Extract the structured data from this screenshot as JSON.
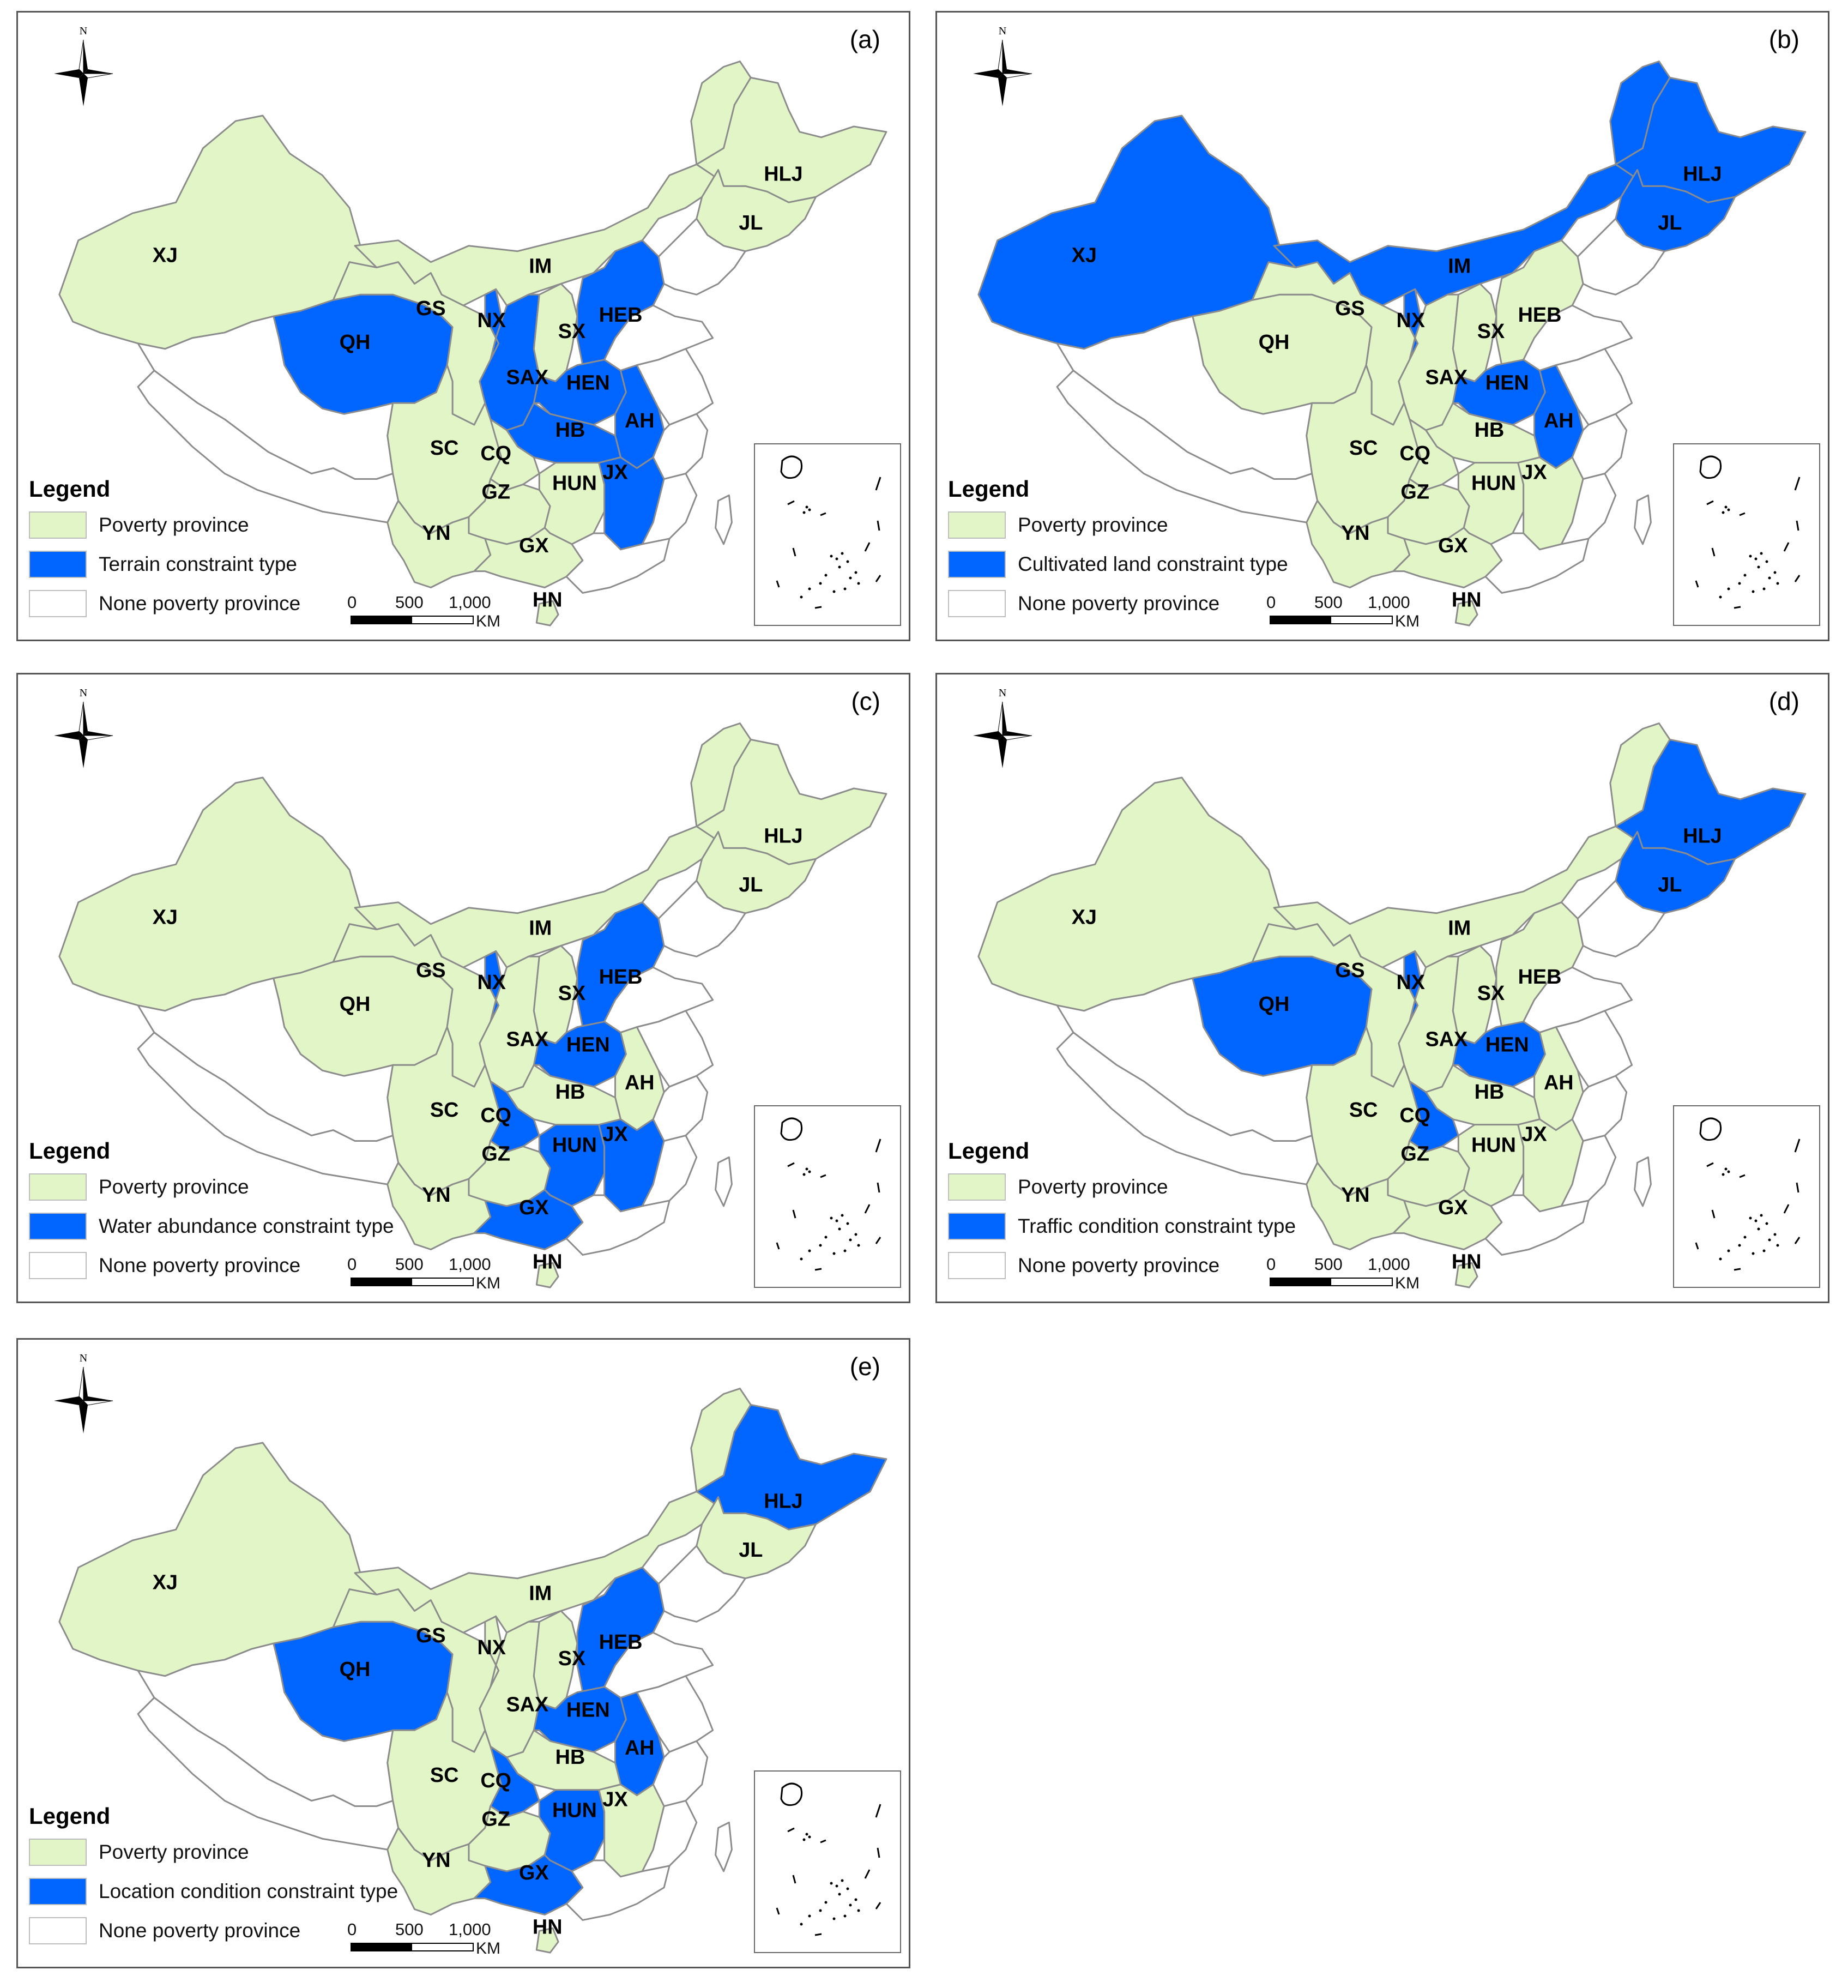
{
  "colors": {
    "poverty": "#e1f5c6",
    "constraint": "#0066ff",
    "none": "#ffffff",
    "border": "#8c8c8c"
  },
  "legend_title": "Legend",
  "legend_common": {
    "poverty_label": "Poverty province",
    "none_label": "None poverty province"
  },
  "scale": {
    "t0": "0",
    "t500": "500",
    "t1000": "1,000",
    "unit": "KM"
  },
  "north_label": "N",
  "provinces": [
    "XJ",
    "QH",
    "GS",
    "NX",
    "IM",
    "SX",
    "HEB",
    "SAX",
    "HEN",
    "AH",
    "HB",
    "SC",
    "CQ",
    "GZ",
    "HUN",
    "JX",
    "YN",
    "GX",
    "HN",
    "HLJ",
    "JL"
  ],
  "panels": [
    {
      "letter": "(a)",
      "constraint_label": "Terrain constraint type",
      "highlighted": [
        "QH",
        "NX",
        "HEB",
        "SAX",
        "HEN",
        "AH",
        "HB",
        "JX"
      ]
    },
    {
      "letter": "(b)",
      "constraint_label": "Cultivated land constraint type",
      "highlighted": [
        "XJ",
        "IM",
        "HLJ",
        "JL",
        "NX",
        "HEN",
        "AH"
      ]
    },
    {
      "letter": "(c)",
      "constraint_label": "Water abundance constraint type",
      "highlighted": [
        "NX",
        "HEB",
        "HEN",
        "CQ",
        "HUN",
        "JX",
        "GX"
      ]
    },
    {
      "letter": "(d)",
      "constraint_label": "Traffic condition constraint type",
      "highlighted": [
        "QH",
        "NX",
        "HEN",
        "CQ",
        "HLJ",
        "JL"
      ]
    },
    {
      "letter": "(e)",
      "constraint_label": "Location condition constraint type",
      "highlighted": [
        "QH",
        "HEB",
        "HEN",
        "AH",
        "CQ",
        "HUN",
        "GX",
        "HLJ"
      ]
    }
  ]
}
